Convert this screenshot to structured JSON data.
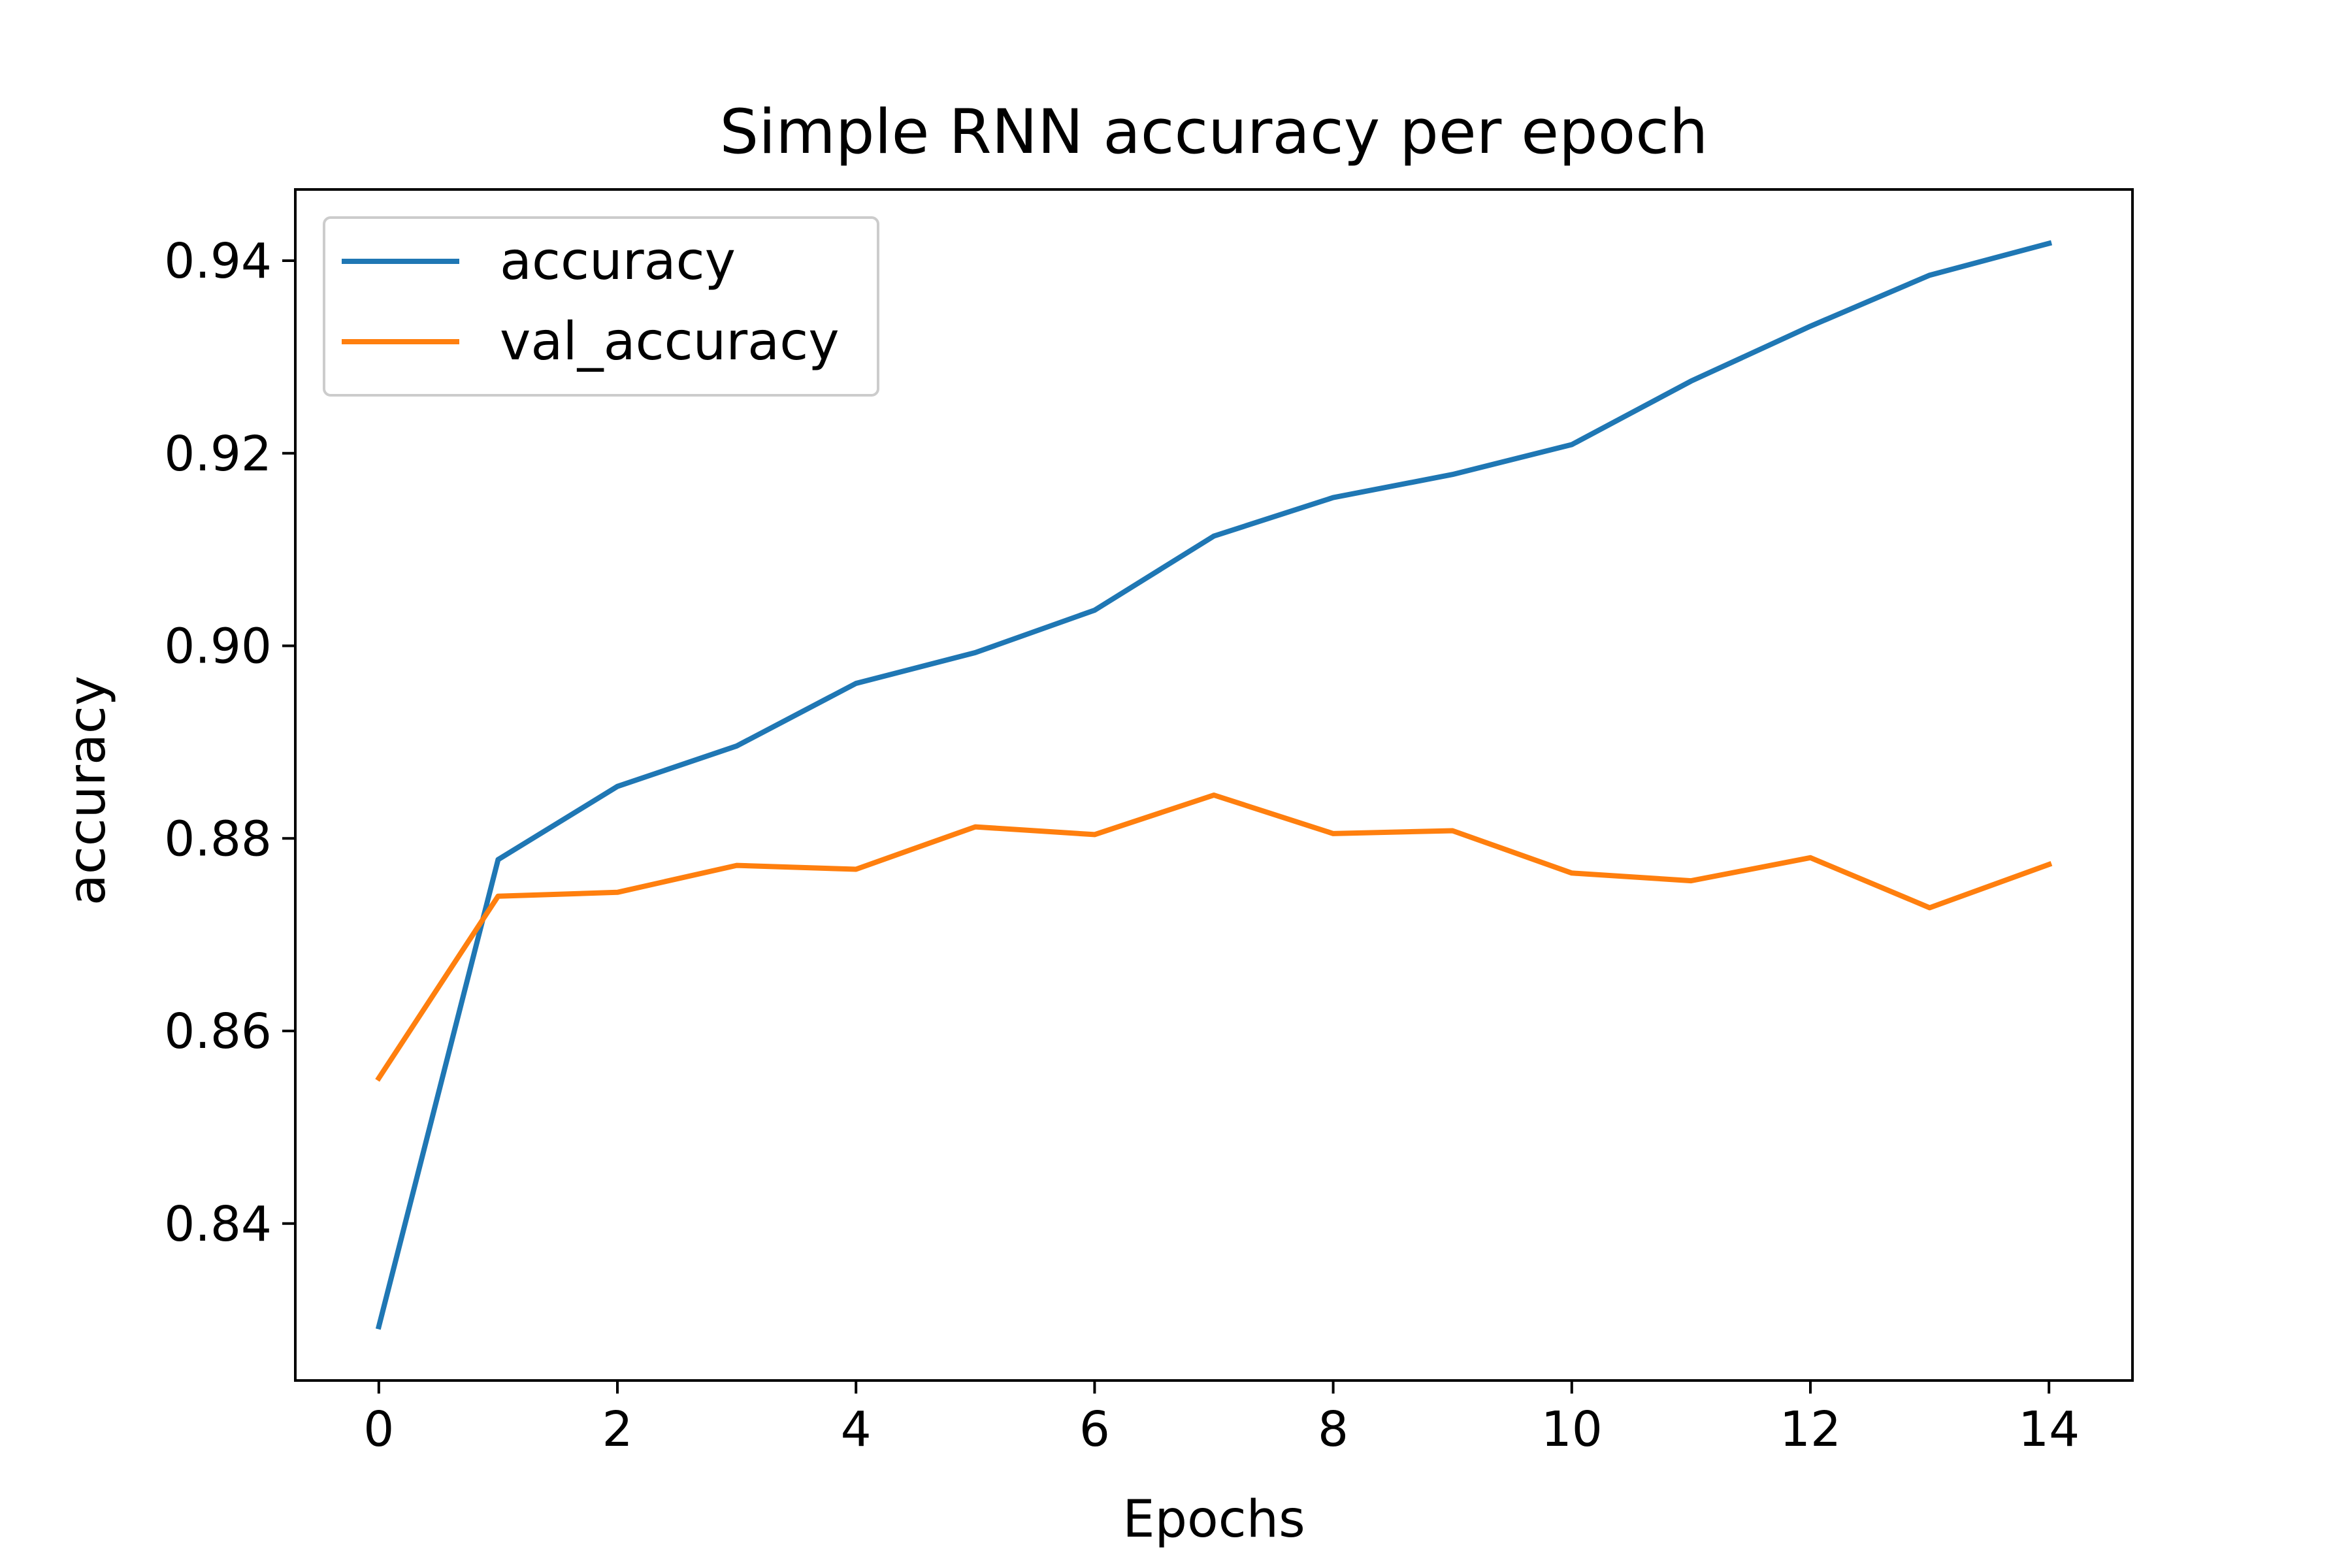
{
  "chart_data": {
    "type": "line",
    "title": "Simple RNN accuracy per epoch",
    "xlabel": "Epochs",
    "ylabel": "accuracy",
    "x": [
      0,
      1,
      2,
      3,
      4,
      5,
      6,
      7,
      8,
      9,
      10,
      11,
      12,
      13,
      14
    ],
    "series": [
      {
        "name": "accuracy",
        "color": "#1f77b4",
        "values": [
          0.8293,
          0.8778,
          0.8854,
          0.8896,
          0.8961,
          0.8993,
          0.9037,
          0.9114,
          0.9154,
          0.9178,
          0.9209,
          0.9275,
          0.9332,
          0.9385,
          0.9418
        ]
      },
      {
        "name": "val_accuracy",
        "color": "#ff7f0e",
        "values": [
          0.8551,
          0.874,
          0.8744,
          0.8772,
          0.8768,
          0.8812,
          0.8804,
          0.8845,
          0.8805,
          0.8808,
          0.8764,
          0.8756,
          0.878,
          0.8728,
          0.8773
        ]
      }
    ],
    "xlim": [
      -0.7,
      14.7
    ],
    "ylim": [
      0.8237,
      0.9474
    ],
    "xticks": [
      0,
      2,
      4,
      6,
      8,
      10,
      12,
      14
    ],
    "xtick_labels": [
      "0",
      "2",
      "4",
      "6",
      "8",
      "10",
      "12",
      "14"
    ],
    "yticks": [
      0.84,
      0.86,
      0.88,
      0.9,
      0.92,
      0.94
    ],
    "ytick_labels": [
      "0.84",
      "0.86",
      "0.88",
      "0.90",
      "0.92",
      "0.94"
    ],
    "grid": false,
    "legend_position": "upper-left"
  }
}
